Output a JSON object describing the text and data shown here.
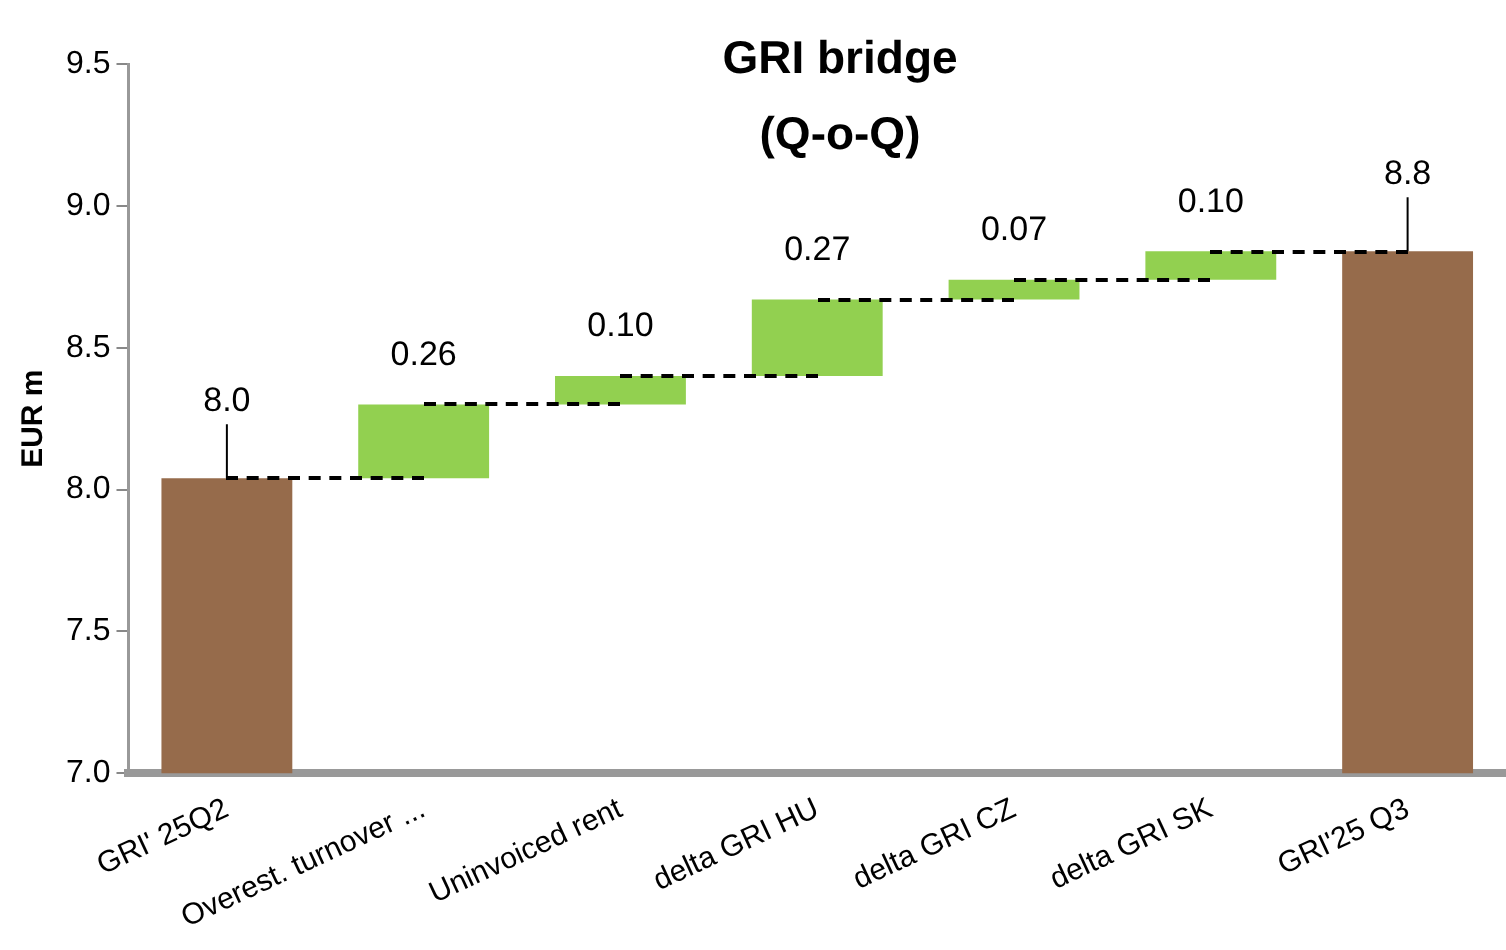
{
  "chart_data": {
    "type": "bar",
    "title": "GRI bridge\n(Q-o-Q)",
    "ylabel": "EUR m",
    "categories": [
      "GRI' 25Q2",
      "Overest. turnover ...",
      "Uninvoiced rent",
      "delta GRI HU",
      "delta GRI CZ",
      "delta GRI SK",
      "GRI'25 Q3"
    ],
    "values": [
      8.04,
      0.26,
      0.1,
      0.27,
      0.07,
      0.1,
      8.84
    ],
    "base": [
      null,
      8.04,
      8.3,
      8.4,
      8.67,
      8.74,
      null
    ],
    "colors": [
      "#966b4b",
      "#92d050",
      "#92d050",
      "#92d050",
      "#92d050",
      "#92d050",
      "#966b4b"
    ],
    "value_labels": [
      "8.0",
      "0.26",
      "0.10",
      "0.27",
      "0.07",
      "0.10",
      "8.8"
    ],
    "ylim": [
      7.0,
      9.5
    ],
    "yticks": [
      {
        "value": 7.0,
        "label": "7.0"
      },
      {
        "value": 7.5,
        "label": "7.5"
      },
      {
        "value": 8.0,
        "label": "8.0"
      },
      {
        "value": 8.5,
        "label": "8.5"
      },
      {
        "value": 9.0,
        "label": "9.0"
      },
      {
        "value": 9.5,
        "label": "9.5"
      }
    ],
    "grid": false,
    "legend": false
  }
}
